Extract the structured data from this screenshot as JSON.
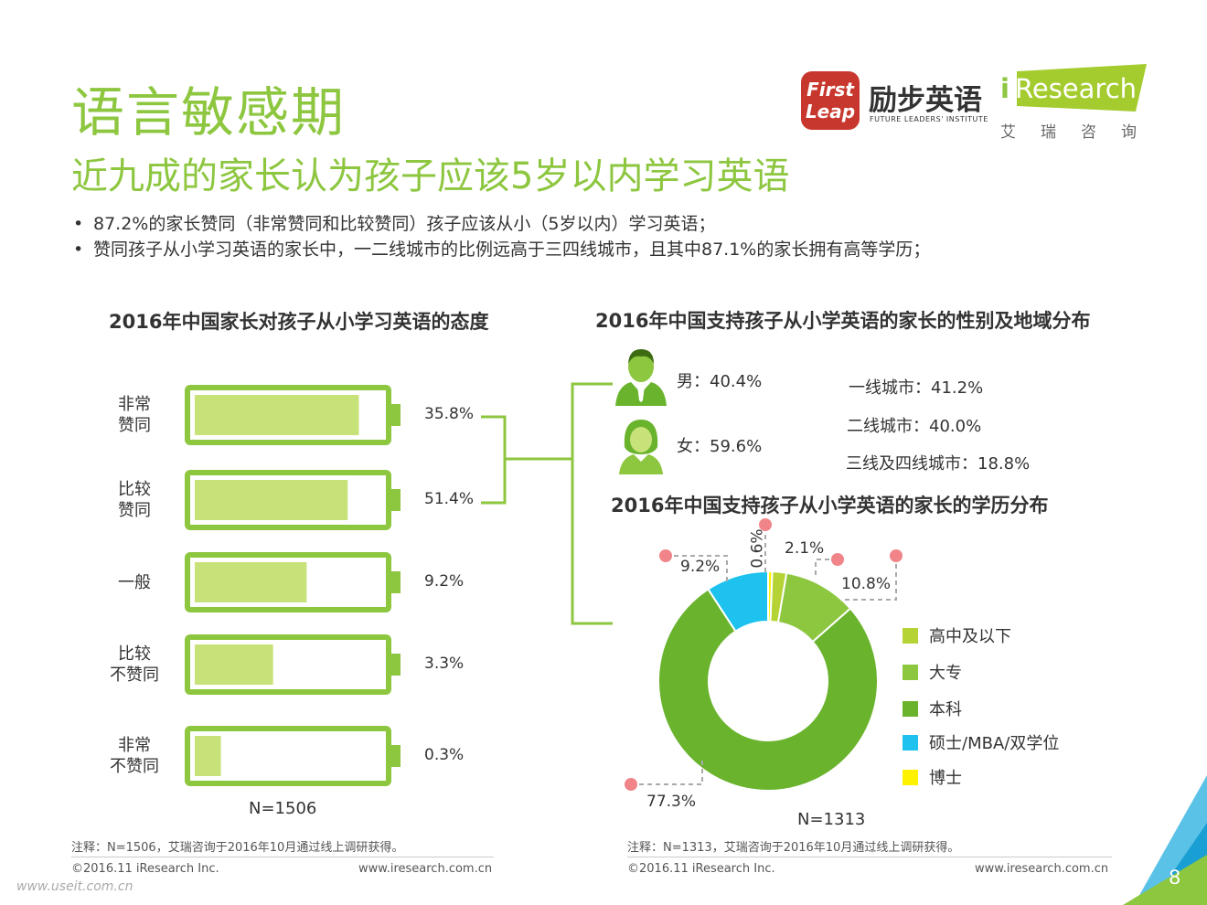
{
  "header": {
    "title": "语言敏感期",
    "subtitle": "近九成的家长认为孩子应该5岁以内学习英语",
    "bullets": [
      "87.2%的家长赞同（非常赞同和比较赞同）孩子应该从小（5岁以内）学习英语；",
      "赞同孩子从小学习英语的家长中，一二线城市的比例远高于三四线城市，且其中87.1%的家长拥有高等学历；"
    ]
  },
  "logos": {
    "firstleap_icon": "First Leap",
    "firstleap_cn": "励步英语",
    "firstleap_en": "FUTURE LEADERS' INSTITUTE",
    "iresearch_i": "i",
    "iresearch_en": "Research",
    "iresearch_cn": "艾瑞咨询"
  },
  "colors": {
    "title_green": "#8dc63f",
    "battery_border": "#8dc63f",
    "battery_fill": "#c8e27a",
    "connector": "#8dc63f",
    "donut_gaozhong": "#b5d334",
    "donut_dazhuan": "#8dc63f",
    "donut_benke": "#6ab32d",
    "donut_shuoshi": "#1ec2ef",
    "donut_boshi": "#fff200",
    "callout_dot": "#f08488"
  },
  "chart_data": [
    {
      "type": "bar",
      "style": "battery",
      "title": "2016年中国家长对孩子从小学习英语的态度",
      "categories": [
        "非常\n赞同",
        "比较\n赞同",
        "一般",
        "比较\n不赞同",
        "非常\n不赞同"
      ],
      "value_labels": [
        "35.8%",
        "51.4%",
        "9.2%",
        "3.3%",
        "0.3%"
      ],
      "fill_levels": [
        0.88,
        0.82,
        0.6,
        0.42,
        0.14
      ],
      "note": "N=1506"
    },
    {
      "type": "table",
      "title": "2016年中国支持孩子从小学英语的家长的性别及地域分布",
      "gender": [
        {
          "label": "男：40.4%",
          "icon": "male-person-icon"
        },
        {
          "label": "女：59.6%",
          "icon": "female-person-icon"
        }
      ],
      "region": [
        "一线城市：41.2%",
        "二线城市：40.0%",
        "三线及四线城市：18.8%"
      ]
    },
    {
      "type": "pie",
      "donut": true,
      "title": "2016年中国支持孩子从小学英语的家长的学历分布",
      "series": [
        {
          "name": "高中及以下",
          "value": 2.1,
          "label": "2.1%"
        },
        {
          "name": "大专",
          "value": 10.8,
          "label": "10.8%"
        },
        {
          "name": "本科",
          "value": 77.3,
          "label": "77.3%"
        },
        {
          "name": "硕士/MBA/双学位",
          "value": 9.2,
          "label": "9.2%"
        },
        {
          "name": "博士",
          "value": 0.6,
          "label": "0.6%"
        }
      ],
      "note": "N=1313"
    }
  ],
  "footer": {
    "note_left": "注释：N=1506，艾瑞咨询于2016年10月通过线上调研获得。",
    "note_right": "注释：N=1313，艾瑞咨询于2016年10月通过线上调研获得。",
    "copyright_left": "©2016.11 iResearch Inc.",
    "url_left": "www.iresearch.com.cn",
    "copyright_right": "©2016.11 iResearch Inc.",
    "url_right": "www.iresearch.com.cn",
    "page_number": "8",
    "watermark": "www.useit.com.cn"
  }
}
